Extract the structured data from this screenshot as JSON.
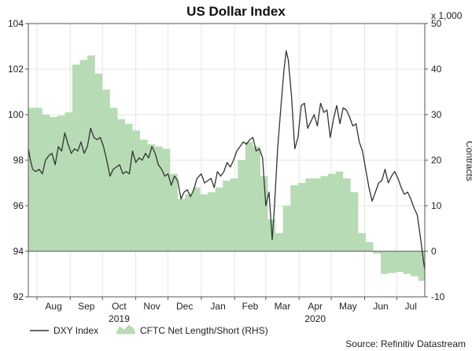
{
  "chart_data": {
    "type": "line",
    "title": "US Dollar Index",
    "source": "Source: Refinitiv Datastream",
    "right_axis_unit": "x 1,000",
    "right_axis_label": "Contracts",
    "ylim_left": [
      92,
      104
    ],
    "yticks_left": [
      "104",
      "102",
      "100",
      "98",
      "96",
      "94",
      "92"
    ],
    "ylim_right": [
      -10,
      50
    ],
    "yticks_right": [
      "50",
      "40",
      "30",
      "20",
      "10",
      "0",
      "-10"
    ],
    "month_labels": [
      "Aug",
      "Sep",
      "Oct",
      "Nov",
      "Dec",
      "Jan",
      "Feb",
      "Mar",
      "Apr",
      "May",
      "Jun",
      "Jul"
    ],
    "year_labels": [
      {
        "label": "2019",
        "month": "Oct"
      },
      {
        "label": "2020",
        "month": "Apr"
      }
    ],
    "xlim": [
      "2019-07-24",
      "2020-07-27"
    ],
    "grid": true,
    "legend_position": "bottom-left",
    "series": [
      {
        "name": "DXY Index",
        "axis": "left",
        "color": "#333333",
        "points": [
          [
            "2019-07-24",
            98.5
          ],
          [
            "2019-07-26",
            98.0
          ],
          [
            "2019-07-28",
            97.6
          ],
          [
            "2019-07-31",
            97.5
          ],
          [
            "2019-08-03",
            97.6
          ],
          [
            "2019-08-06",
            97.4
          ],
          [
            "2019-08-09",
            98.0
          ],
          [
            "2019-08-12",
            98.2
          ],
          [
            "2019-08-15",
            98.3
          ],
          [
            "2019-08-18",
            97.8
          ],
          [
            "2019-08-21",
            98.6
          ],
          [
            "2019-08-24",
            98.4
          ],
          [
            "2019-08-27",
            99.2
          ],
          [
            "2019-08-30",
            98.7
          ],
          [
            "2019-09-02",
            98.3
          ],
          [
            "2019-09-05",
            98.5
          ],
          [
            "2019-09-08",
            98.4
          ],
          [
            "2019-09-11",
            98.8
          ],
          [
            "2019-09-14",
            98.3
          ],
          [
            "2019-09-17",
            98.6
          ],
          [
            "2019-09-20",
            99.4
          ],
          [
            "2019-09-23",
            99.0
          ],
          [
            "2019-09-26",
            98.9
          ],
          [
            "2019-09-29",
            99.0
          ],
          [
            "2019-10-02",
            98.6
          ],
          [
            "2019-10-05",
            98.0
          ],
          [
            "2019-10-08",
            97.3
          ],
          [
            "2019-10-11",
            97.6
          ],
          [
            "2019-10-14",
            97.7
          ],
          [
            "2019-10-17",
            97.8
          ],
          [
            "2019-10-20",
            97.4
          ],
          [
            "2019-10-23",
            97.5
          ],
          [
            "2019-10-26",
            97.4
          ],
          [
            "2019-10-29",
            98.4
          ],
          [
            "2019-11-01",
            97.9
          ],
          [
            "2019-11-04",
            98.1
          ],
          [
            "2019-11-07",
            98.0
          ],
          [
            "2019-11-10",
            98.3
          ],
          [
            "2019-11-13",
            98.1
          ],
          [
            "2019-11-16",
            98.6
          ],
          [
            "2019-11-19",
            98.3
          ],
          [
            "2019-11-22",
            97.8
          ],
          [
            "2019-11-25",
            97.6
          ],
          [
            "2019-11-28",
            97.3
          ],
          [
            "2019-12-01",
            97.4
          ],
          [
            "2019-12-04",
            96.9
          ],
          [
            "2019-12-07",
            97.3
          ],
          [
            "2019-12-10",
            97.1
          ],
          [
            "2019-12-13",
            96.3
          ],
          [
            "2019-12-16",
            96.6
          ],
          [
            "2019-12-19",
            96.7
          ],
          [
            "2019-12-22",
            96.4
          ],
          [
            "2019-12-25",
            96.7
          ],
          [
            "2019-12-28",
            97.2
          ],
          [
            "2020-01-01",
            97.4
          ],
          [
            "2020-01-04",
            97.0
          ],
          [
            "2020-01-07",
            97.1
          ],
          [
            "2020-01-10",
            97.2
          ],
          [
            "2020-01-13",
            96.8
          ],
          [
            "2020-01-16",
            97.5
          ],
          [
            "2020-01-19",
            97.3
          ],
          [
            "2020-01-22",
            97.5
          ],
          [
            "2020-01-25",
            97.9
          ],
          [
            "2020-01-28",
            97.7
          ],
          [
            "2020-01-31",
            98.0
          ],
          [
            "2020-02-03",
            98.4
          ],
          [
            "2020-02-06",
            98.6
          ],
          [
            "2020-02-09",
            98.8
          ],
          [
            "2020-02-12",
            98.7
          ],
          [
            "2020-02-15",
            98.9
          ],
          [
            "2020-02-18",
            99.0
          ],
          [
            "2020-02-21",
            98.4
          ],
          [
            "2020-02-24",
            98.5
          ],
          [
            "2020-02-27",
            98.1
          ],
          [
            "2020-03-01",
            96.0
          ],
          [
            "2020-03-04",
            96.6
          ],
          [
            "2020-03-07",
            94.5
          ],
          [
            "2020-03-09",
            95.9
          ],
          [
            "2020-03-12",
            98.5
          ],
          [
            "2020-03-15",
            100.3
          ],
          [
            "2020-03-18",
            102.0
          ],
          [
            "2020-03-20",
            102.8
          ],
          [
            "2020-03-22",
            102.4
          ],
          [
            "2020-03-25",
            100.8
          ],
          [
            "2020-03-28",
            98.5
          ],
          [
            "2020-03-31",
            99.0
          ],
          [
            "2020-04-03",
            100.4
          ],
          [
            "2020-04-06",
            100.5
          ],
          [
            "2020-04-09",
            99.4
          ],
          [
            "2020-04-12",
            99.7
          ],
          [
            "2020-04-15",
            100.0
          ],
          [
            "2020-04-18",
            99.5
          ],
          [
            "2020-04-21",
            100.5
          ],
          [
            "2020-04-24",
            100.1
          ],
          [
            "2020-04-27",
            100.2
          ],
          [
            "2020-04-30",
            99.0
          ],
          [
            "2020-05-03",
            99.8
          ],
          [
            "2020-05-06",
            100.4
          ],
          [
            "2020-05-09",
            99.6
          ],
          [
            "2020-05-12",
            100.3
          ],
          [
            "2020-05-15",
            100.2
          ],
          [
            "2020-05-18",
            99.9
          ],
          [
            "2020-05-21",
            99.5
          ],
          [
            "2020-05-24",
            99.6
          ],
          [
            "2020-05-27",
            98.8
          ],
          [
            "2020-05-30",
            98.4
          ],
          [
            "2020-06-02",
            97.6
          ],
          [
            "2020-06-05",
            96.8
          ],
          [
            "2020-06-08",
            96.2
          ],
          [
            "2020-06-11",
            96.6
          ],
          [
            "2020-06-14",
            97.0
          ],
          [
            "2020-06-17",
            97.1
          ],
          [
            "2020-06-20",
            97.6
          ],
          [
            "2020-06-23",
            97.0
          ],
          [
            "2020-06-26",
            97.3
          ],
          [
            "2020-06-29",
            97.5
          ],
          [
            "2020-07-02",
            97.2
          ],
          [
            "2020-07-05",
            96.8
          ],
          [
            "2020-07-08",
            96.5
          ],
          [
            "2020-07-11",
            96.6
          ],
          [
            "2020-07-14",
            96.3
          ],
          [
            "2020-07-17",
            95.9
          ],
          [
            "2020-07-20",
            95.6
          ],
          [
            "2020-07-23",
            94.6
          ],
          [
            "2020-07-26",
            93.5
          ],
          [
            "2020-07-27",
            93.2
          ]
        ]
      },
      {
        "name": "CFTC Net Length/Short (RHS)",
        "axis": "right",
        "color": "#b7dbb5",
        "points": [
          [
            "2019-07-24",
            31.5
          ],
          [
            "2019-07-30",
            31.5
          ],
          [
            "2019-08-06",
            30.0
          ],
          [
            "2019-08-13",
            29.5
          ],
          [
            "2019-08-20",
            29.8
          ],
          [
            "2019-08-27",
            30.5
          ],
          [
            "2019-09-03",
            41.0
          ],
          [
            "2019-09-10",
            42.0
          ],
          [
            "2019-09-17",
            43.0
          ],
          [
            "2019-09-24",
            39.0
          ],
          [
            "2019-10-01",
            35.5
          ],
          [
            "2019-10-08",
            31.5
          ],
          [
            "2019-10-15",
            29.0
          ],
          [
            "2019-10-22",
            28.0
          ],
          [
            "2019-10-29",
            26.5
          ],
          [
            "2019-11-05",
            24.5
          ],
          [
            "2019-11-12",
            23.5
          ],
          [
            "2019-11-19",
            23.0
          ],
          [
            "2019-11-26",
            22.5
          ],
          [
            "2019-12-03",
            17.0
          ],
          [
            "2019-12-10",
            11.5
          ],
          [
            "2019-12-17",
            12.5
          ],
          [
            "2019-12-24",
            14.0
          ],
          [
            "2019-12-31",
            12.5
          ],
          [
            "2020-01-07",
            13.0
          ],
          [
            "2020-01-14",
            14.0
          ],
          [
            "2020-01-21",
            15.5
          ],
          [
            "2020-01-28",
            16.0
          ],
          [
            "2020-02-04",
            20.0
          ],
          [
            "2020-02-11",
            24.0
          ],
          [
            "2020-02-18",
            23.0
          ],
          [
            "2020-02-25",
            16.5
          ],
          [
            "2020-03-03",
            7.0
          ],
          [
            "2020-03-10",
            4.0
          ],
          [
            "2020-03-17",
            10.0
          ],
          [
            "2020-03-24",
            14.5
          ],
          [
            "2020-03-31",
            15.0
          ],
          [
            "2020-04-07",
            16.0
          ],
          [
            "2020-04-14",
            16.0
          ],
          [
            "2020-04-21",
            16.5
          ],
          [
            "2020-04-28",
            17.0
          ],
          [
            "2020-05-05",
            17.5
          ],
          [
            "2020-05-12",
            16.0
          ],
          [
            "2020-05-19",
            13.0
          ],
          [
            "2020-05-26",
            4.0
          ],
          [
            "2020-06-02",
            2.0
          ],
          [
            "2020-06-09",
            -0.5
          ],
          [
            "2020-06-16",
            -5.0
          ],
          [
            "2020-06-23",
            -4.8
          ],
          [
            "2020-06-30",
            -4.5
          ],
          [
            "2020-07-07",
            -5.0
          ],
          [
            "2020-07-14",
            -5.5
          ],
          [
            "2020-07-21",
            -6.5
          ],
          [
            "2020-07-27",
            -6.5
          ]
        ]
      }
    ]
  }
}
